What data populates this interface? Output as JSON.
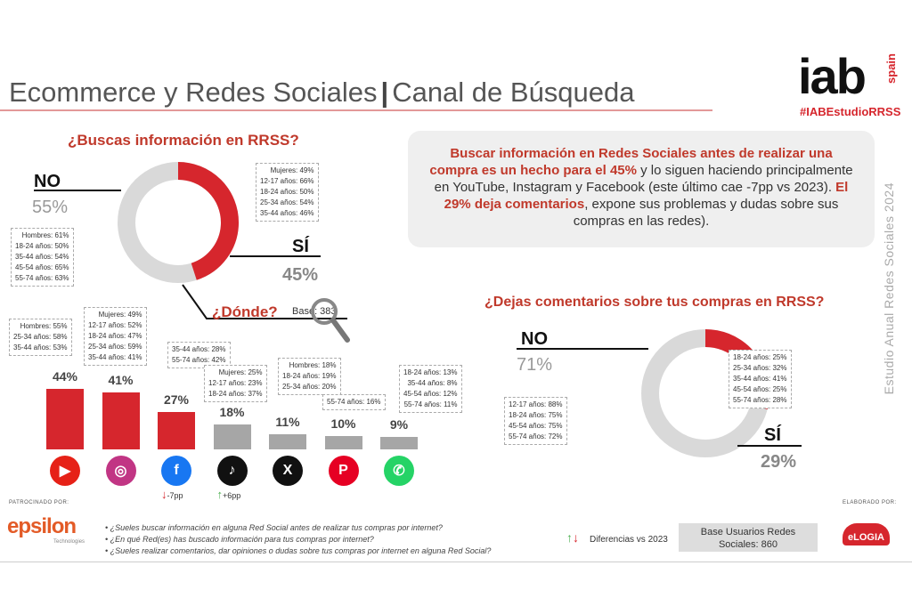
{
  "header": {
    "title_main": "Ecommerce y Redes Sociales",
    "title_sep": "|",
    "title_sub": "Canal de Búsqueda",
    "logo_text": "iab",
    "logo_sub": "spain",
    "hashtag": "#IABEstudioRRSS"
  },
  "q1": {
    "question": "¿Buscas información en RRSS?",
    "no_label": "NO",
    "no_pct": "55%",
    "si_label": "SÍ",
    "si_pct": "45%",
    "no_value": 55,
    "si_value": 45,
    "no_breakdown": [
      "Hombres: 61%",
      "18-24 años: 50%",
      "35-44 años: 54%",
      "45-54 años: 65%",
      "55-74 años: 63%"
    ],
    "si_breakdown": [
      "Mujeres: 49%",
      "12-17 años: 66%",
      "18-24 años: 50%",
      "25-34 años: 54%",
      "35-44 años: 46%"
    ]
  },
  "info": {
    "p1_red": "Buscar información en Redes Sociales antes de realizar una compra es un hecho para el 45%",
    "p1_rest": " y lo siguen haciendo principalmente en YouTube, Instagram y Facebook (este último cae -7pp vs 2023). ",
    "p2_red": "El 29% deja comentarios",
    "p2_rest": ", expone sus problemas y dudas sobre sus compras en las redes)."
  },
  "donde": {
    "label": "¿Dónde?",
    "base": "Base: 383"
  },
  "platforms": [
    {
      "name": "YouTube",
      "pct_label": "44%",
      "value": 44,
      "color": "#d6262d",
      "icon": "youtube-icon",
      "icon_color": "#e62117",
      "glyph": "▶",
      "breakdown": [
        "Hombres: 55%",
        "25-34 años: 58%",
        "35-44 años: 53%"
      ],
      "change": ""
    },
    {
      "name": "Instagram",
      "pct_label": "41%",
      "value": 41,
      "color": "#d6262d",
      "icon": "instagram-icon",
      "icon_color": "#c13584",
      "glyph": "◎",
      "breakdown": [
        "Mujeres: 49%",
        "12-17 años: 52%",
        "18-24 años: 47%",
        "25-34 años: 59%",
        "35-44 años: 41%"
      ],
      "change": ""
    },
    {
      "name": "Facebook",
      "pct_label": "27%",
      "value": 27,
      "color": "#d6262d",
      "icon": "facebook-icon",
      "icon_color": "#1877f2",
      "glyph": "f",
      "breakdown": [
        "35-44 años: 28%",
        "55-74 años: 42%"
      ],
      "change": "-7pp",
      "change_dir": "down"
    },
    {
      "name": "TikTok",
      "pct_label": "18%",
      "value": 18,
      "color": "#a6a6a6",
      "icon": "tiktok-icon",
      "icon_color": "#111111",
      "glyph": "♪",
      "breakdown": [
        "Mujeres: 25%",
        "12-17 años: 23%",
        "18-24 años: 37%"
      ],
      "change": "+6pp",
      "change_dir": "up"
    },
    {
      "name": "X",
      "pct_label": "11%",
      "value": 11,
      "color": "#a6a6a6",
      "icon": "x-icon",
      "icon_color": "#111111",
      "glyph": "X",
      "breakdown": [
        "Hombres: 18%",
        "18-24 años: 19%",
        "25-34 años: 20%"
      ],
      "change": ""
    },
    {
      "name": "Pinterest",
      "pct_label": "10%",
      "value": 10,
      "color": "#a6a6a6",
      "icon": "pinterest-icon",
      "icon_color": "#e60023",
      "glyph": "P",
      "breakdown": [
        "55-74 años: 16%"
      ],
      "change": ""
    },
    {
      "name": "WhatsApp",
      "pct_label": "9%",
      "value": 9,
      "color": "#a6a6a6",
      "icon": "whatsapp-icon",
      "icon_color": "#25d366",
      "glyph": "✆",
      "breakdown": [
        "18-24 años: 13%",
        "35-44 años: 8%",
        "45-54 años: 12%",
        "55-74 años: 11%"
      ],
      "change": ""
    }
  ],
  "q2": {
    "question": "¿Dejas comentarios sobre tus compras en RRSS?",
    "no_label": "NO",
    "no_pct": "71%",
    "si_label": "SÍ",
    "si_pct": "29%",
    "no_value": 71,
    "si_value": 29,
    "no_breakdown": [
      "12-17 años: 88%",
      "18-24 años: 75%",
      "45-54 años: 75%",
      "55-74 años: 72%"
    ],
    "si_breakdown": [
      "18-24 años: 25%",
      "25-34 años: 32%",
      "35-44 años: 41%",
      "45-54 años: 25%",
      "55-74 años: 28%"
    ]
  },
  "side_text": "Estudio Anual Redes Sociales 2024",
  "footer": {
    "sponsored": "PATROCINADO POR:",
    "sponsor": "epsilon",
    "sponsor_sub": "Technologies",
    "questions": [
      "• ¿Sueles buscar información en alguna Red Social antes de realizar tus compras por internet?",
      "• ¿En qué Red(es) has buscado información para tus compras por internet?",
      "• ¿Sueles realizar comentarios, dar opiniones o dudas sobre tus compras por internet en alguna Red Social?"
    ],
    "diff": "Diferencias vs 2023",
    "base_line1": "Base Usuarios Redes",
    "base_line2": "Sociales: 860",
    "made_by": "ELABORADO POR:",
    "maker": "eLOGIA"
  },
  "colors": {
    "red": "#d6262d",
    "grey": "#d9d9d9",
    "title_red": "#c0392b"
  }
}
